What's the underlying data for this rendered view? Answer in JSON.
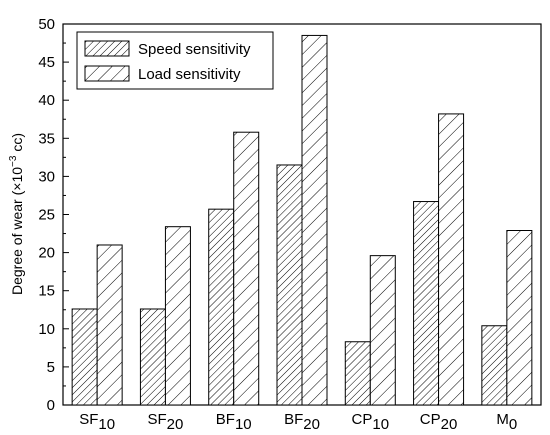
{
  "chart_data": {
    "type": "bar",
    "title": "",
    "xlabel": "",
    "ylabel": "Degree of wear (×10",
    "ylabel_exponent": "−3",
    "ylabel_unit": " cc)",
    "ylim": [
      0,
      50
    ],
    "yticks": [
      0,
      5,
      10,
      15,
      20,
      25,
      30,
      35,
      40,
      45,
      50
    ],
    "grid": false,
    "legend_position": "top-left",
    "categories": [
      {
        "base": "SF",
        "sub": "10"
      },
      {
        "base": "SF",
        "sub": "20"
      },
      {
        "base": "BF",
        "sub": "10"
      },
      {
        "base": "BF",
        "sub": "20"
      },
      {
        "base": "CP",
        "sub": "10"
      },
      {
        "base": "CP",
        "sub": "20"
      },
      {
        "base": "M",
        "sub": "0"
      }
    ],
    "series": [
      {
        "name": "Speed sensitivity",
        "hatch": "dense-diagonal",
        "values": [
          12.6,
          12.6,
          25.7,
          31.5,
          8.3,
          26.7,
          10.4
        ]
      },
      {
        "name": "Load sensitivity",
        "hatch": "sparse-diagonal",
        "values": [
          21.0,
          23.4,
          35.8,
          48.5,
          19.6,
          38.2,
          22.9
        ]
      }
    ],
    "colors": {
      "stroke": "#000000",
      "background": "#ffffff"
    }
  }
}
